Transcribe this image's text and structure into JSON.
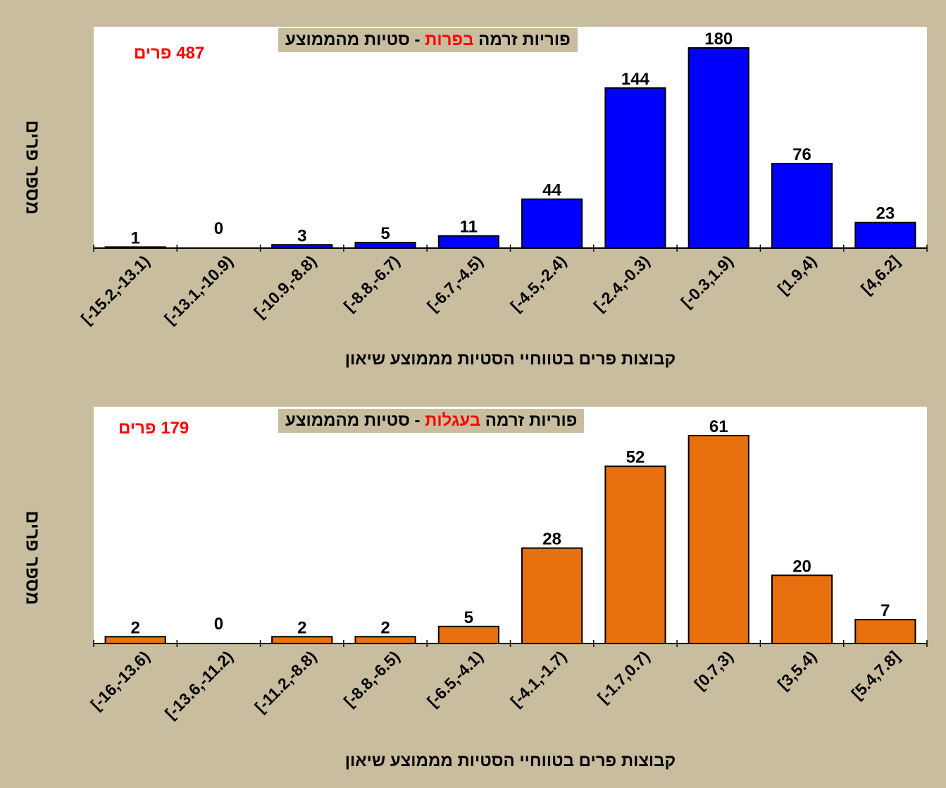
{
  "colors": {
    "background": "#c8bd9e",
    "bulls_bar": "#0000ff",
    "calves_bar": "#e8700f",
    "highlight": "#ff0000"
  },
  "chart_data": [
    {
      "type": "bar",
      "title_before": "פוריות זרמה ",
      "title_highlight": "בפרות",
      "title_after": " - סטיות מהממוצע",
      "count_label": "487 פרים",
      "ylabel": "מספר פרים",
      "xlabel": "קבוצות פרים בטווחיי הסטיות מממוצע שיאון",
      "categories": [
        "[-15.2,-13.1)",
        "[-13.1,-10.9)",
        "[-10.9,-8.8)",
        "[-8.8,-6.7)",
        "[-6.7,-4.5)",
        "[-4.5,-2.4)",
        "[-2.4,-0.3)",
        "[-0.3,1.9)",
        "[1.9,4)",
        "[4,6.2]"
      ],
      "values": [
        1,
        0,
        3,
        5,
        11,
        44,
        144,
        180,
        76,
        23
      ],
      "ylim": [
        0,
        180
      ],
      "color": "#0000ff"
    },
    {
      "type": "bar",
      "title_before": "פוריות זרמה ",
      "title_highlight": "בעגלות",
      "title_after": " - סטיות מהממוצע",
      "count_label": "179 פרים",
      "ylabel": "מספר פרים",
      "xlabel": "קבוצות פרים בטווחיי הסטיות מממוצע שיאון",
      "categories": [
        "[-16,-13.6)",
        "[-13.6,-11.2)",
        "[-11.2,-8.8)",
        "[-8.8,-6.5)",
        "[-6.5,-4.1)",
        "[-4.1,-1.7)",
        "[-1.7,0.7)",
        "[0.7,3)",
        "[3,5.4)",
        "[5.4,7.8]"
      ],
      "values": [
        2,
        0,
        2,
        2,
        5,
        28,
        52,
        61,
        20,
        7
      ],
      "ylim": [
        0,
        61
      ],
      "color": "#e8700f"
    }
  ]
}
